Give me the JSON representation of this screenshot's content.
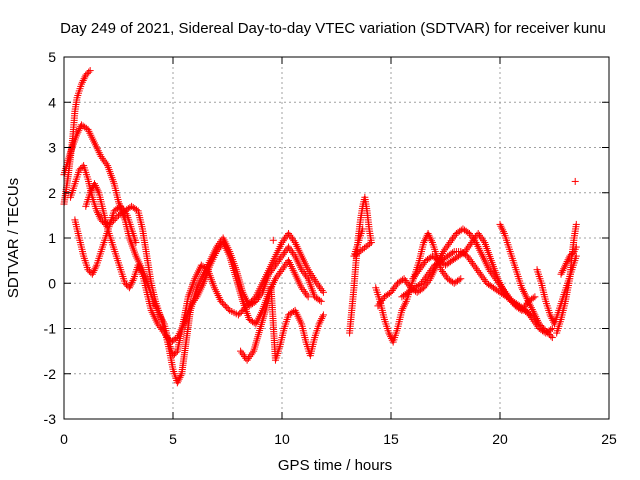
{
  "chart_data": {
    "type": "scatter",
    "title": "Day 249 of 2021, Sidereal Day-to-day VTEC variation (SDTVAR) for receiver kunu",
    "xlabel": "GPS time / hours",
    "ylabel": "SDTVAR / TECUs",
    "xlim": [
      0,
      25
    ],
    "ylim": [
      -3,
      5
    ],
    "xticks": [
      0,
      5,
      10,
      15,
      20,
      25
    ],
    "yticks": [
      -3,
      -2,
      -1,
      0,
      1,
      2,
      3,
      4,
      5
    ],
    "grid": true,
    "legend": "none",
    "marker": "plus",
    "color": "#ff0000",
    "series": [
      {
        "points": [
          [
            0.0,
            1.75
          ],
          [
            0.2,
            2.4
          ],
          [
            0.4,
            3.2
          ],
          [
            0.5,
            3.8
          ],
          [
            0.6,
            4.1
          ],
          [
            0.8,
            4.4
          ],
          [
            1.0,
            4.6
          ],
          [
            1.2,
            4.7
          ]
        ]
      },
      {
        "points": [
          [
            0.0,
            2.4
          ],
          [
            0.3,
            2.9
          ],
          [
            0.6,
            3.3
          ],
          [
            0.8,
            3.5
          ],
          [
            1.1,
            3.4
          ],
          [
            1.4,
            3.1
          ],
          [
            1.7,
            2.8
          ],
          [
            2.0,
            2.6
          ],
          [
            2.3,
            2.2
          ],
          [
            2.5,
            1.8
          ],
          [
            2.8,
            1.4
          ],
          [
            3.0,
            1.0
          ],
          [
            3.3,
            0.6
          ],
          [
            3.6,
            0.3
          ],
          [
            3.9,
            -0.1
          ],
          [
            4.1,
            -0.4
          ],
          [
            4.3,
            -0.6
          ],
          [
            4.6,
            -0.9
          ],
          [
            4.8,
            -1.3
          ],
          [
            5.0,
            -1.6
          ],
          [
            5.2,
            -1.5
          ],
          [
            5.5,
            -0.8
          ],
          [
            5.7,
            -0.3
          ],
          [
            6.0,
            0.1
          ],
          [
            6.3,
            0.4
          ],
          [
            6.6,
            0.3
          ],
          [
            6.9,
            -0.1
          ],
          [
            7.2,
            -0.4
          ],
          [
            7.6,
            -0.6
          ],
          [
            8.0,
            -0.7
          ],
          [
            8.4,
            -0.5
          ],
          [
            8.8,
            -0.3
          ],
          [
            9.2,
            0.1
          ],
          [
            9.6,
            0.5
          ],
          [
            10.0,
            0.9
          ],
          [
            10.3,
            1.1
          ],
          [
            10.6,
            0.9
          ],
          [
            10.9,
            0.6
          ],
          [
            11.2,
            0.3
          ],
          [
            11.6,
            0.0
          ],
          [
            11.9,
            -0.2
          ]
        ]
      },
      {
        "points": [
          [
            0.3,
            1.9
          ],
          [
            0.5,
            2.2
          ],
          [
            0.7,
            2.5
          ],
          [
            0.9,
            2.6
          ],
          [
            1.1,
            2.3
          ],
          [
            1.3,
            1.9
          ],
          [
            1.5,
            1.6
          ],
          [
            1.7,
            1.4
          ],
          [
            1.9,
            1.3
          ],
          [
            2.2,
            1.35
          ],
          [
            2.5,
            1.5
          ],
          [
            2.8,
            1.6
          ],
          [
            3.1,
            1.7
          ],
          [
            3.4,
            1.6
          ],
          [
            3.6,
            1.2
          ],
          [
            3.8,
            0.6
          ],
          [
            4.0,
            0.0
          ],
          [
            4.2,
            -0.4
          ],
          [
            4.4,
            -0.7
          ],
          [
            4.6,
            -1.0
          ],
          [
            4.8,
            -1.4
          ],
          [
            5.0,
            -1.9
          ],
          [
            5.2,
            -2.2
          ],
          [
            5.4,
            -2.0
          ],
          [
            5.6,
            -1.3
          ],
          [
            5.8,
            -0.6
          ],
          [
            6.1,
            -0.1
          ],
          [
            6.4,
            0.2
          ],
          [
            6.7,
            0.5
          ],
          [
            7.0,
            0.8
          ],
          [
            7.3,
            1.0
          ],
          [
            7.6,
            0.7
          ],
          [
            7.9,
            0.3
          ],
          [
            8.2,
            -0.2
          ],
          [
            8.5,
            -0.5
          ],
          [
            8.8,
            -0.4
          ],
          [
            9.1,
            -0.2
          ],
          [
            9.4,
            0.2
          ],
          [
            9.7,
            0.4
          ],
          [
            10.0,
            0.6
          ],
          [
            10.3,
            0.8
          ],
          [
            10.6,
            0.6
          ],
          [
            10.9,
            0.3
          ],
          [
            11.2,
            0.1
          ],
          [
            11.5,
            -0.3
          ],
          [
            11.8,
            -0.4
          ]
        ]
      },
      {
        "points": [
          [
            1.0,
            1.7
          ],
          [
            1.2,
            2.0
          ],
          [
            1.4,
            2.2
          ],
          [
            1.6,
            2.0
          ],
          [
            1.8,
            1.6
          ],
          [
            2.0,
            1.2
          ],
          [
            2.2,
            0.9
          ],
          [
            2.4,
            0.6
          ],
          [
            2.6,
            0.3
          ],
          [
            2.8,
            0.0
          ],
          [
            3.0,
            -0.1
          ],
          [
            3.2,
            0.1
          ],
          [
            3.4,
            0.4
          ],
          [
            3.6,
            0.2
          ],
          [
            3.8,
            -0.2
          ],
          [
            4.0,
            -0.6
          ],
          [
            4.3,
            -0.9
          ],
          [
            4.6,
            -1.1
          ],
          [
            4.9,
            -1.3
          ],
          [
            5.2,
            -1.2
          ],
          [
            5.5,
            -0.9
          ],
          [
            5.8,
            -0.5
          ],
          [
            6.1,
            -0.3
          ],
          [
            6.4,
            0.0
          ],
          [
            6.7,
            0.4
          ],
          [
            7.0,
            0.7
          ],
          [
            7.3,
            0.9
          ],
          [
            7.6,
            0.6
          ],
          [
            7.9,
            0.1
          ],
          [
            8.2,
            -0.4
          ],
          [
            8.5,
            -0.8
          ],
          [
            8.8,
            -0.9
          ],
          [
            9.1,
            -0.6
          ],
          [
            9.4,
            -0.2
          ],
          [
            9.7,
            0.1
          ],
          [
            10.0,
            0.3
          ],
          [
            10.3,
            0.5
          ],
          [
            10.6,
            0.2
          ],
          [
            10.9,
            -0.1
          ],
          [
            11.2,
            -0.3
          ]
        ]
      },
      {
        "points": [
          [
            0.5,
            1.4
          ],
          [
            0.7,
            1.0
          ],
          [
            0.9,
            0.6
          ],
          [
            1.1,
            0.3
          ],
          [
            1.3,
            0.2
          ],
          [
            1.5,
            0.4
          ],
          [
            1.7,
            0.7
          ],
          [
            1.9,
            1.0
          ],
          [
            2.1,
            1.3
          ],
          [
            2.3,
            1.6
          ],
          [
            2.6,
            1.7
          ],
          [
            2.9,
            1.5
          ],
          [
            3.1,
            1.2
          ],
          [
            3.3,
            0.9
          ]
        ]
      },
      {
        "points": [
          [
            8.1,
            -1.5
          ],
          [
            8.4,
            -1.7
          ],
          [
            8.7,
            -1.5
          ],
          [
            9.0,
            -1.0
          ],
          [
            9.3,
            -0.5
          ],
          [
            9.5,
            -0.1
          ],
          [
            9.7,
            -1.7
          ],
          [
            9.9,
            -1.4
          ],
          [
            10.1,
            -1.0
          ],
          [
            10.3,
            -0.7
          ],
          [
            10.6,
            -0.6
          ],
          [
            10.9,
            -0.9
          ],
          [
            11.1,
            -1.3
          ],
          [
            11.3,
            -1.6
          ],
          [
            11.5,
            -1.2
          ],
          [
            11.7,
            -0.9
          ],
          [
            11.9,
            -0.7
          ]
        ]
      },
      {
        "points": [
          [
            9.6,
            0.95
          ]
        ]
      },
      {
        "points": [
          [
            13.1,
            -1.1
          ],
          [
            13.2,
            -0.6
          ],
          [
            13.3,
            -0.1
          ],
          [
            13.4,
            0.5
          ],
          [
            13.5,
            1.0
          ],
          [
            13.6,
            1.4
          ],
          [
            13.7,
            1.7
          ],
          [
            13.8,
            1.9
          ],
          [
            13.9,
            1.6
          ],
          [
            14.0,
            1.2
          ],
          [
            14.1,
            0.9
          ],
          [
            13.3,
            0.6
          ],
          [
            13.5,
            0.9
          ],
          [
            13.7,
            1.2
          ]
        ]
      },
      {
        "points": [
          [
            14.3,
            -0.1
          ],
          [
            14.5,
            -0.4
          ],
          [
            14.7,
            -0.8
          ],
          [
            14.9,
            -1.1
          ],
          [
            15.1,
            -1.3
          ],
          [
            15.3,
            -1.0
          ],
          [
            15.5,
            -0.6
          ],
          [
            15.7,
            -0.4
          ],
          [
            15.9,
            -0.1
          ],
          [
            16.1,
            0.2
          ],
          [
            16.3,
            0.5
          ],
          [
            16.5,
            0.9
          ],
          [
            16.7,
            1.1
          ],
          [
            16.9,
            0.9
          ],
          [
            17.1,
            0.6
          ],
          [
            17.3,
            0.3
          ],
          [
            17.6,
            0.1
          ],
          [
            17.9,
            0.0
          ],
          [
            18.2,
            0.1
          ]
        ]
      },
      {
        "points": [
          [
            14.4,
            -0.5
          ],
          [
            14.7,
            -0.3
          ],
          [
            15.0,
            -0.2
          ],
          [
            15.3,
            0.0
          ],
          [
            15.6,
            0.1
          ],
          [
            15.9,
            -0.1
          ],
          [
            16.2,
            -0.2
          ],
          [
            16.5,
            -0.1
          ],
          [
            16.8,
            0.1
          ],
          [
            17.1,
            0.4
          ],
          [
            17.4,
            0.7
          ],
          [
            17.7,
            0.9
          ],
          [
            18.0,
            1.1
          ],
          [
            18.3,
            1.2
          ],
          [
            18.6,
            1.1
          ],
          [
            18.9,
            0.9
          ],
          [
            19.2,
            0.6
          ],
          [
            19.5,
            0.3
          ],
          [
            19.8,
            0.1
          ],
          [
            20.1,
            -0.1
          ],
          [
            20.4,
            -0.3
          ],
          [
            20.7,
            -0.5
          ],
          [
            21.0,
            -0.6
          ],
          [
            21.3,
            -0.4
          ],
          [
            21.6,
            -0.3
          ]
        ]
      },
      {
        "points": [
          [
            15.5,
            -0.3
          ],
          [
            15.8,
            -0.2
          ],
          [
            16.1,
            -0.1
          ],
          [
            16.4,
            0.0
          ],
          [
            16.7,
            0.2
          ],
          [
            17.0,
            0.4
          ],
          [
            17.3,
            0.5
          ],
          [
            17.6,
            0.6
          ],
          [
            17.9,
            0.7
          ],
          [
            18.2,
            0.7
          ],
          [
            18.5,
            0.6
          ],
          [
            18.8,
            0.4
          ],
          [
            19.1,
            0.2
          ],
          [
            19.4,
            0.0
          ],
          [
            19.7,
            -0.1
          ],
          [
            20.0,
            -0.2
          ],
          [
            20.3,
            -0.3
          ],
          [
            20.6,
            -0.4
          ],
          [
            20.9,
            -0.5
          ],
          [
            21.2,
            -0.6
          ],
          [
            21.5,
            -0.8
          ],
          [
            21.8,
            -1.0
          ],
          [
            22.1,
            -1.1
          ],
          [
            22.4,
            -1.0
          ]
        ]
      },
      {
        "points": [
          [
            16.0,
            0.1
          ],
          [
            16.3,
            0.3
          ],
          [
            16.6,
            0.5
          ],
          [
            16.9,
            0.6
          ],
          [
            17.2,
            0.5
          ],
          [
            17.5,
            0.4
          ],
          [
            17.8,
            0.5
          ],
          [
            18.1,
            0.6
          ],
          [
            18.4,
            0.7
          ],
          [
            18.7,
            0.9
          ],
          [
            19.0,
            1.1
          ],
          [
            19.3,
            0.9
          ],
          [
            19.6,
            0.5
          ],
          [
            19.9,
            0.1
          ],
          [
            20.2,
            -0.2
          ],
          [
            20.5,
            -0.4
          ],
          [
            20.8,
            -0.5
          ],
          [
            21.1,
            -0.6
          ],
          [
            21.4,
            -0.7
          ]
        ]
      },
      {
        "points": [
          [
            20.0,
            1.3
          ],
          [
            20.2,
            1.1
          ],
          [
            20.4,
            0.8
          ],
          [
            20.6,
            0.5
          ],
          [
            20.8,
            0.2
          ],
          [
            21.0,
            -0.1
          ],
          [
            21.2,
            -0.3
          ],
          [
            21.4,
            -0.5
          ],
          [
            21.6,
            -0.7
          ],
          [
            21.8,
            -0.9
          ],
          [
            22.0,
            -1.0
          ],
          [
            22.2,
            -1.1
          ],
          [
            22.4,
            -1.2
          ]
        ]
      },
      {
        "points": [
          [
            21.7,
            0.3
          ],
          [
            21.9,
            0.0
          ],
          [
            22.1,
            -0.4
          ],
          [
            22.3,
            -0.7
          ],
          [
            22.5,
            -0.9
          ],
          [
            22.7,
            -0.6
          ],
          [
            22.9,
            -0.3
          ],
          [
            23.1,
            0.0
          ],
          [
            23.3,
            0.3
          ],
          [
            23.5,
            0.6
          ]
        ]
      },
      {
        "points": [
          [
            22.6,
            -1.1
          ],
          [
            22.8,
            -0.8
          ],
          [
            23.0,
            -0.4
          ],
          [
            23.2,
            0.1
          ],
          [
            23.3,
            0.6
          ],
          [
            23.4,
            1.0
          ],
          [
            23.5,
            1.3
          ]
        ]
      },
      {
        "points": [
          [
            22.8,
            0.2
          ],
          [
            23.0,
            0.4
          ],
          [
            23.2,
            0.6
          ],
          [
            23.4,
            0.7
          ],
          [
            23.5,
            0.8
          ]
        ]
      },
      {
        "points": [
          [
            23.45,
            2.25
          ]
        ]
      }
    ]
  }
}
